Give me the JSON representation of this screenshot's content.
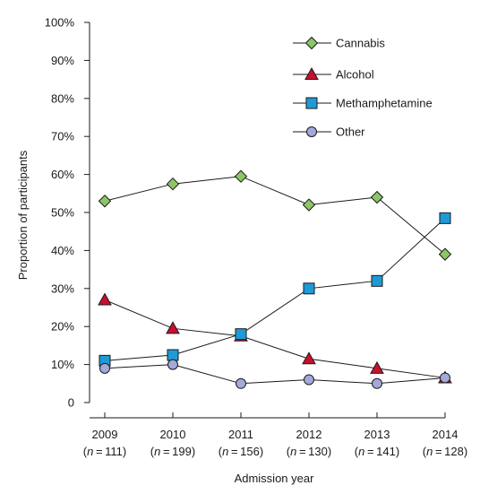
{
  "chart_data": {
    "type": "line",
    "xlabel": "Admission year",
    "ylabel": "Proportion of participants",
    "categories": [
      "2009",
      "2010",
      "2011",
      "2012",
      "2013",
      "2014"
    ],
    "sample_sizes": [
      "111",
      "199",
      "156",
      "130",
      "141",
      "128"
    ],
    "ylim": [
      0,
      100
    ],
    "yticks": [
      "0",
      "10%",
      "20%",
      "30%",
      "40%",
      "50%",
      "60%",
      "70%",
      "80%",
      "90%",
      "100%"
    ],
    "grid": false,
    "legend_position": "top-right",
    "series": [
      {
        "name": "Cannabis",
        "marker": "diamond",
        "color": "#8cc665",
        "values": [
          53,
          57.5,
          59.5,
          52,
          54,
          39
        ]
      },
      {
        "name": "Alcohol",
        "marker": "triangle",
        "color": "#c8102e",
        "values": [
          27,
          19.5,
          17.5,
          11.5,
          9,
          6.5
        ]
      },
      {
        "name": "Methamphetamine",
        "marker": "square",
        "color": "#1e9ad6",
        "values": [
          11,
          12.5,
          18,
          30,
          32,
          48.5
        ]
      },
      {
        "name": "Other",
        "marker": "circle",
        "color": "#a3a9d9",
        "values": [
          9,
          10,
          5,
          6,
          5,
          6.5
        ]
      }
    ]
  }
}
